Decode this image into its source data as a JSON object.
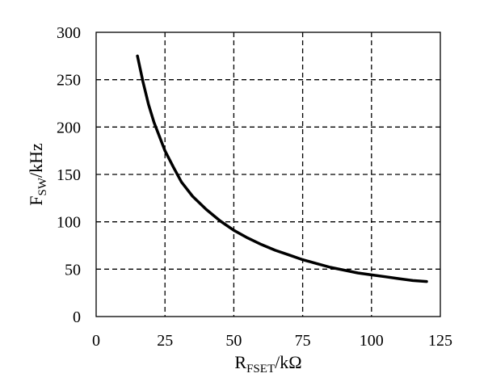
{
  "chart_data": {
    "type": "line",
    "title": "",
    "xlabel": {
      "main": "R",
      "sub": "FSET",
      "tail": "/kΩ"
    },
    "ylabel": {
      "main": "F",
      "sub": "SW",
      "tail": "/kHz"
    },
    "xlim": [
      0,
      125
    ],
    "ylim": [
      0,
      300
    ],
    "xticks": [
      0,
      25,
      50,
      75,
      100,
      125
    ],
    "yticks": [
      0,
      50,
      100,
      150,
      200,
      250,
      300
    ],
    "xtick_labels": [
      "0",
      "25",
      "50",
      "75",
      "100",
      "125"
    ],
    "ytick_labels": [
      "0",
      "50",
      "100",
      "150",
      "200",
      "250",
      "300"
    ],
    "grid": "dashed",
    "legend": "none",
    "line_color": "#000000",
    "series": [
      {
        "x": [
          15,
          17,
          19,
          21,
          23,
          25,
          28,
          31,
          35,
          40,
          45,
          50,
          55,
          60,
          65,
          70,
          75,
          80,
          85,
          90,
          95,
          100,
          105,
          110,
          115,
          120
        ],
        "y": [
          275,
          248,
          224,
          205,
          190,
          175,
          158,
          142,
          127,
          113,
          101,
          91,
          83,
          76,
          70,
          65,
          60,
          56,
          52,
          49,
          46,
          44,
          42,
          40,
          38,
          37
        ]
      }
    ]
  }
}
